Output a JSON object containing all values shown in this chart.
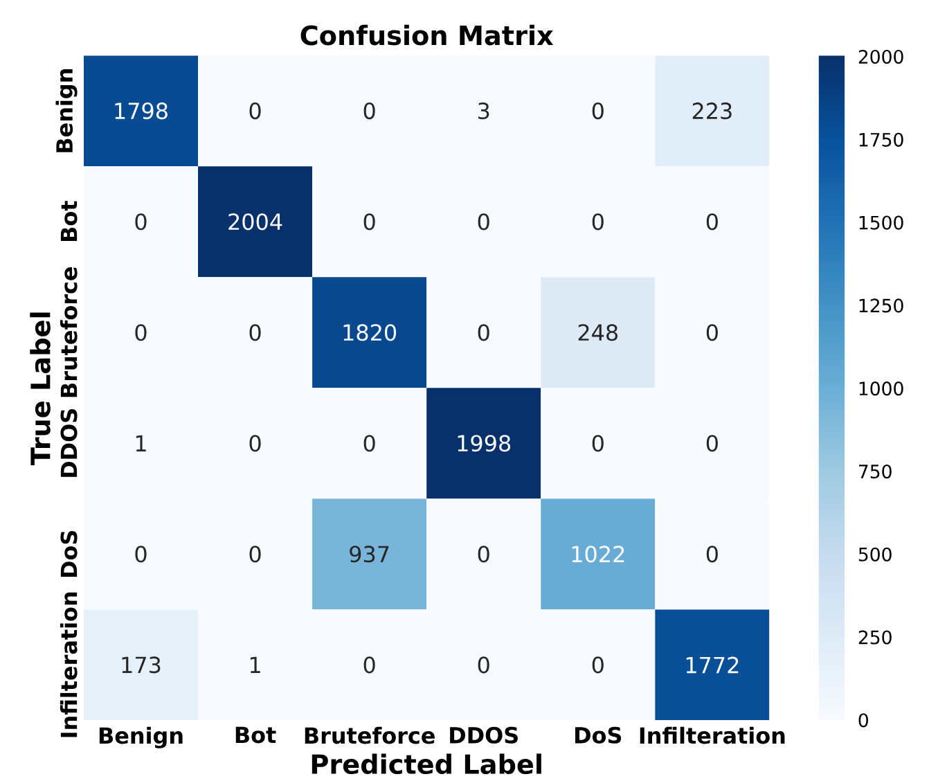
{
  "chart_data": {
    "type": "heatmap",
    "title": "Confusion Matrix",
    "xlabel": "Predicted Label",
    "ylabel": "True Label",
    "categories": [
      "Benign",
      "Bot",
      "Bruteforce",
      "DDOS",
      "DoS",
      "Infilteration"
    ],
    "y_categories": [
      "Benign",
      "Bot",
      "Bruteforce",
      "DDOS",
      "DoS",
      "Infilteration"
    ],
    "cells": [
      [
        1798,
        0,
        0,
        3,
        0,
        223
      ],
      [
        0,
        2004,
        0,
        0,
        0,
        0
      ],
      [
        0,
        0,
        1820,
        0,
        248,
        0
      ],
      [
        1,
        0,
        0,
        1998,
        0,
        0
      ],
      [
        0,
        0,
        937,
        0,
        1022,
        0
      ],
      [
        173,
        1,
        0,
        0,
        0,
        1772
      ]
    ],
    "data_labels": true,
    "clim": [
      0,
      2004
    ],
    "cticks": [
      0,
      250,
      500,
      750,
      1000,
      1250,
      1500,
      1750,
      2000
    ]
  }
}
